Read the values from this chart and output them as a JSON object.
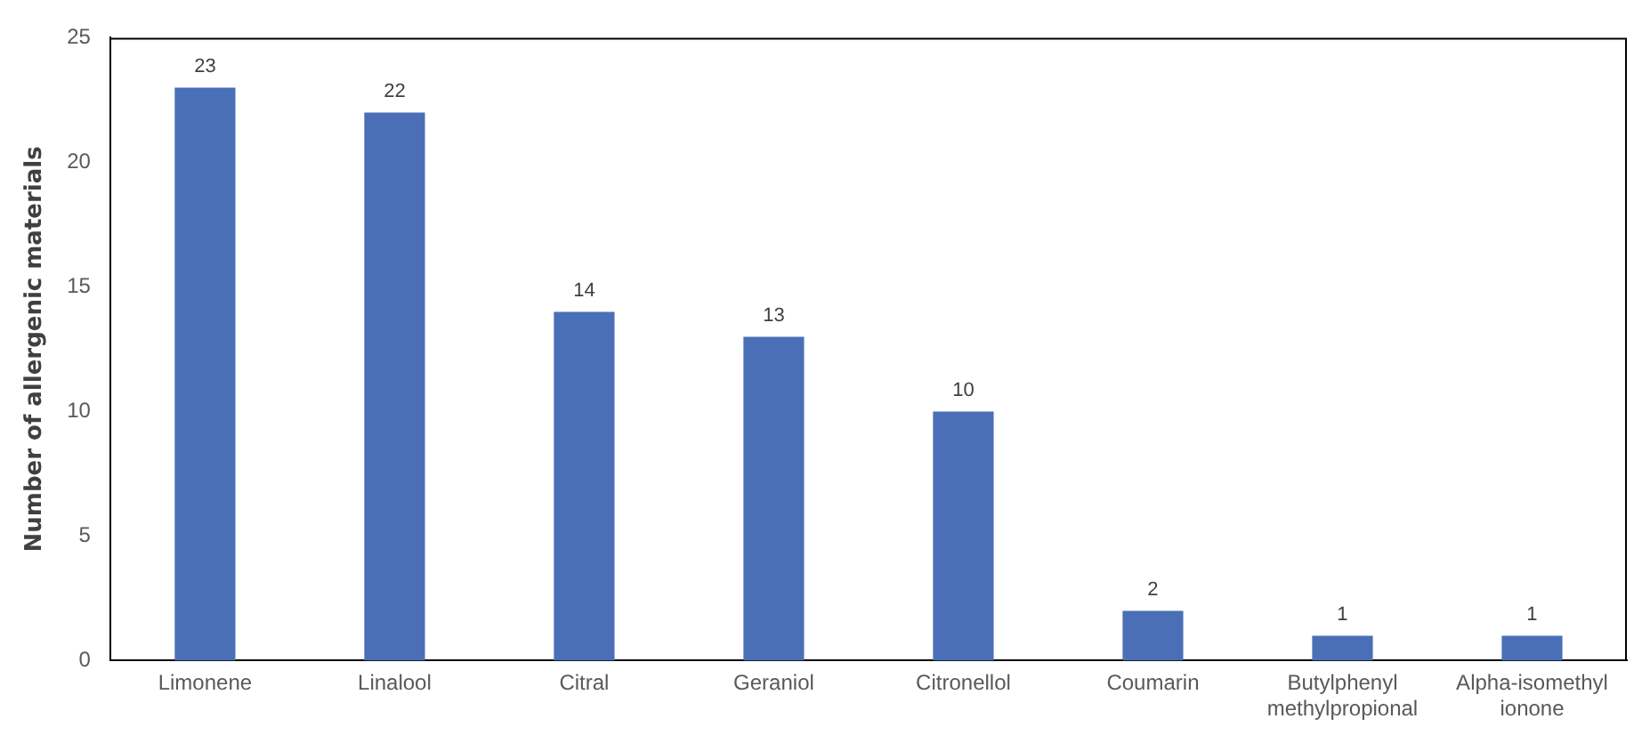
{
  "chart_data": {
    "type": "bar",
    "ylabel": "Number of allergenic materials",
    "categories": [
      "Limonene",
      "Linalool",
      "Citral",
      "Geraniol",
      "Citronellol",
      "Coumarin",
      "Butylphenyl methylpropional",
      "Alpha-isomethyl ionone"
    ],
    "values": [
      23,
      22,
      14,
      13,
      10,
      2,
      1,
      1
    ],
    "color": "#4a6fb7",
    "ylim": [
      0,
      25
    ],
    "yticks": [
      0,
      5,
      10,
      15,
      20,
      25
    ],
    "grid": false,
    "legend": false,
    "data_labels": true
  }
}
